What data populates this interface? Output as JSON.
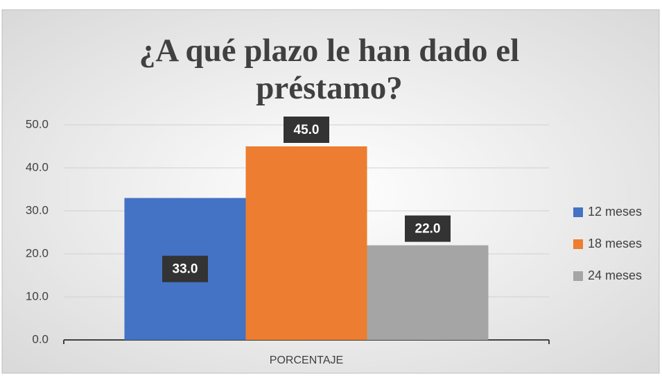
{
  "chart_data": {
    "type": "bar",
    "title": "¿A qué plazo le han dado el préstamo?",
    "categories": [
      "PORCENTAJE"
    ],
    "series": [
      {
        "name": "12 meses",
        "color": "#4472c4",
        "values": [
          33
        ],
        "value_labels": [
          "33.0"
        ]
      },
      {
        "name": "18 meses",
        "color": "#ed7d31",
        "values": [
          45
        ],
        "value_labels": [
          "45.0"
        ]
      },
      {
        "name": "24 meses",
        "color": "#a5a5a5",
        "values": [
          22
        ],
        "value_labels": [
          "22.0"
        ]
      }
    ],
    "ylim": [
      0,
      50
    ],
    "yticks": [
      {
        "value": 0,
        "label": "0.0"
      },
      {
        "value": 10,
        "label": "10.0"
      },
      {
        "value": 20,
        "label": "20.0"
      },
      {
        "value": 30,
        "label": "30.0"
      },
      {
        "value": 40,
        "label": "40.0"
      },
      {
        "value": 50,
        "label": "50.0"
      }
    ],
    "grid": true,
    "legend": "right"
  }
}
